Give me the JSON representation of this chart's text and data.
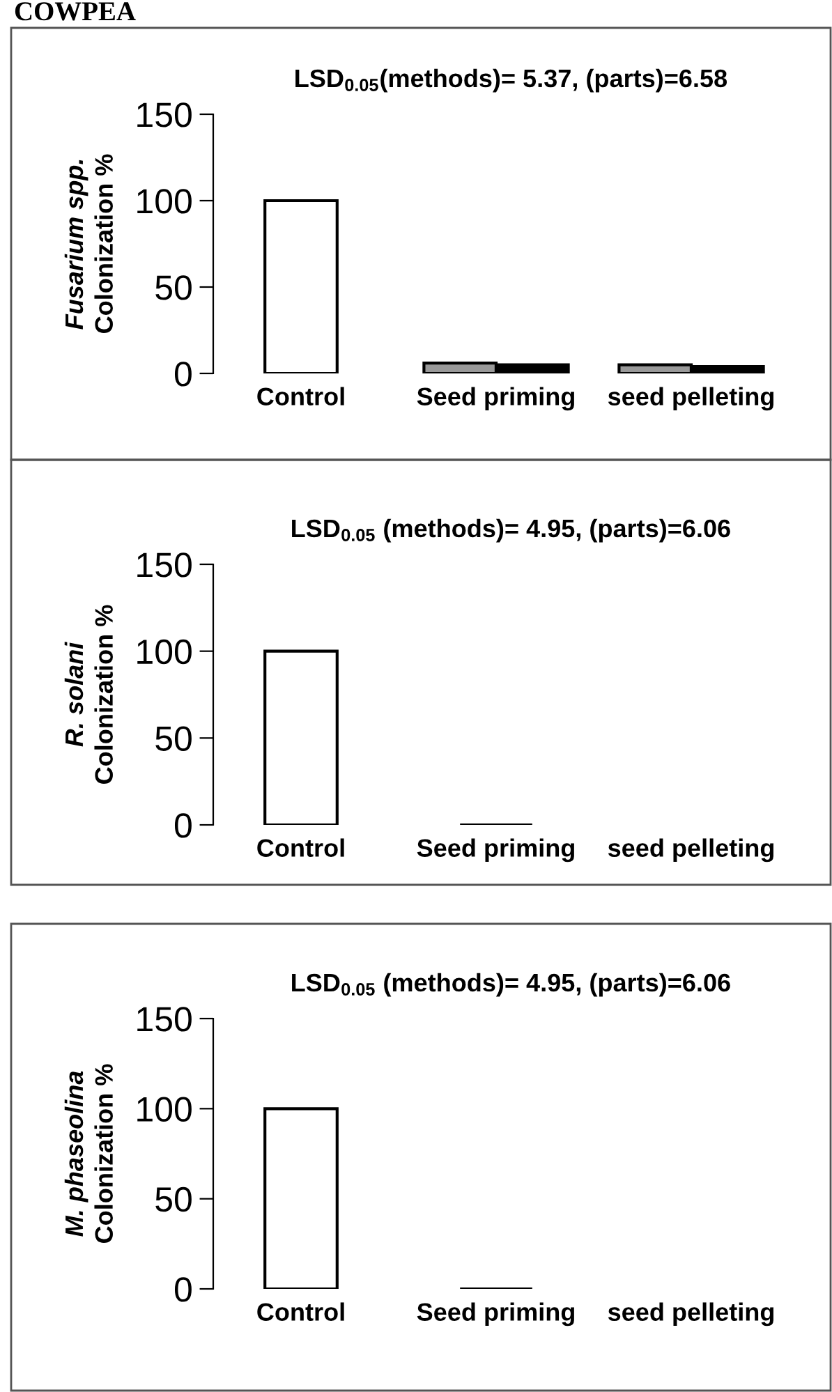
{
  "chart_data": [
    {
      "type": "bar",
      "title": "LSD$_{0.05}$(methods)= 5.37, (parts)=6.58",
      "ylabel": "Fusarium spp.\nColonization %",
      "annotations": [
        "COWPEA"
      ],
      "categories": [
        "Control",
        "Seed priming",
        "seed pelleting"
      ],
      "ylim": [
        0,
        150
      ],
      "yticks": [
        0,
        50,
        100,
        150
      ],
      "grid": false,
      "legend": false,
      "series": [
        {
          "colors": [
            "#ffffff",
            "#999999",
            "#999999"
          ],
          "values": [
            100,
            6,
            5
          ]
        },
        {
          "color": "#000000",
          "values": [
            null,
            5,
            4
          ]
        }
      ]
    },
    {
      "type": "bar",
      "title": "LSD$_{0.05}$ (methods)= 4.95, (parts)=6.06",
      "ylabel": "R. solani\nColonization %",
      "categories": [
        "Control",
        "Seed priming",
        "seed pelleting"
      ],
      "ylim": [
        0,
        150
      ],
      "yticks": [
        0,
        50,
        100,
        150
      ],
      "grid": false,
      "legend": false,
      "series": [
        {
          "colors": [
            "#ffffff",
            "#000000",
            "#ffffff"
          ],
          "values": [
            100,
            0,
            null
          ]
        }
      ]
    },
    {
      "type": "bar",
      "title": "LSD$_{0.05}$ (methods)= 4.95, (parts)=6.06",
      "ylabel": "M. phaseolina\nColonization %",
      "categories": [
        "Control",
        "Seed priming",
        "seed pelleting"
      ],
      "ylim": [
        0,
        150
      ],
      "yticks": [
        0,
        50,
        100,
        150
      ],
      "grid": false,
      "legend": false,
      "series": [
        {
          "colors": [
            "#ffffff",
            "#000000",
            "#ffffff"
          ],
          "values": [
            100,
            0,
            null
          ]
        }
      ]
    }
  ]
}
